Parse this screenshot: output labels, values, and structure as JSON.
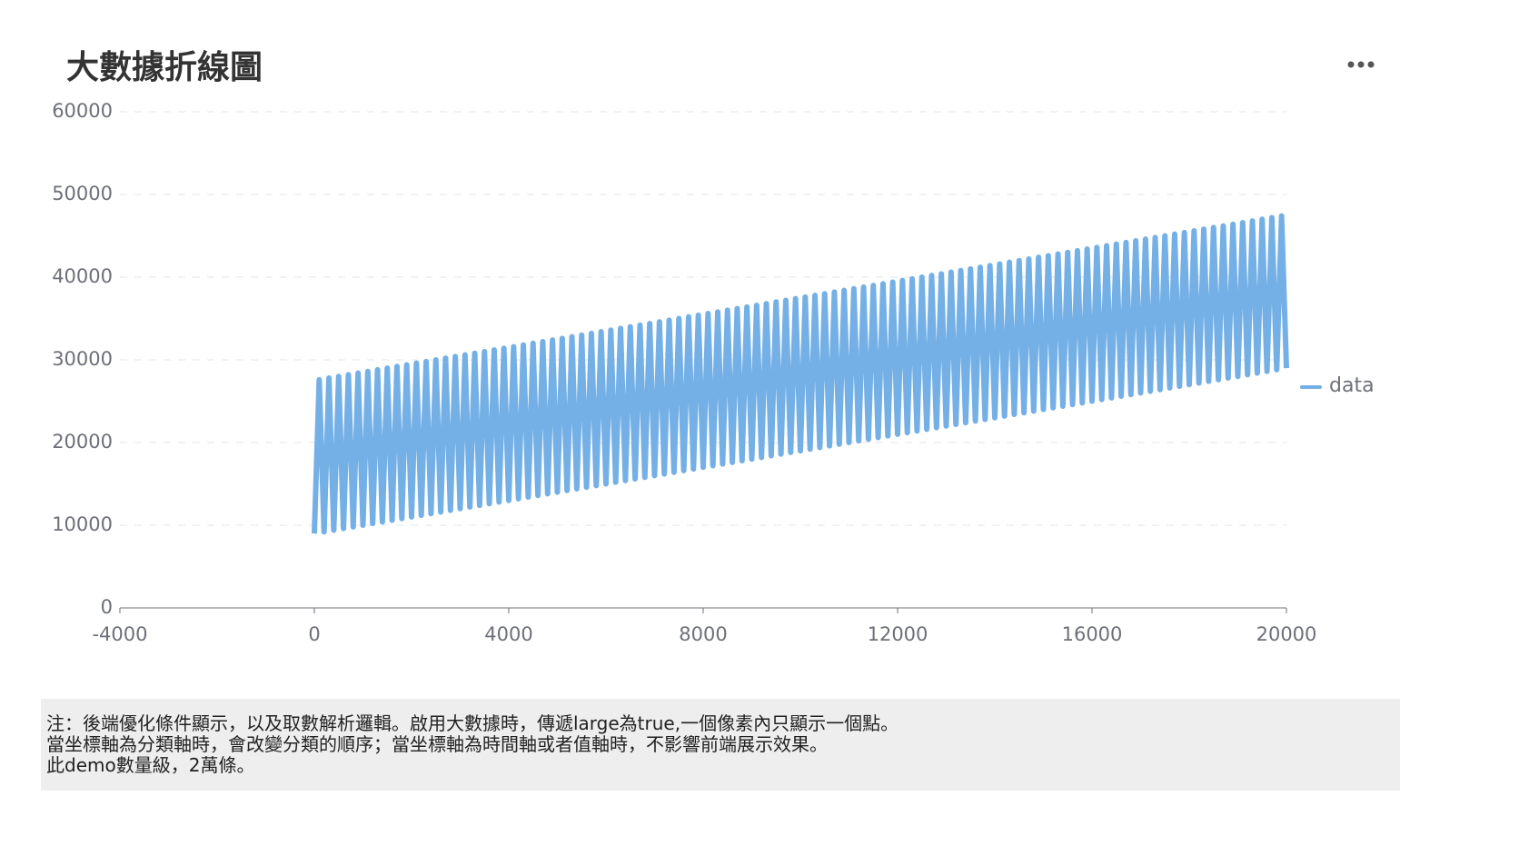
{
  "chart_data": {
    "type": "line",
    "title": "大數據折線圖",
    "xlim": [
      -4000,
      20000
    ],
    "xticks": [
      -4000,
      0,
      4000,
      8000,
      12000,
      16000,
      20000
    ],
    "ylim": [
      0,
      60000
    ],
    "yticks": [
      0,
      10000,
      20000,
      30000,
      40000,
      50000,
      60000
    ],
    "grid": true,
    "legend": "right",
    "x": [
      0,
      100,
      200,
      300,
      400,
      500,
      600,
      700,
      800,
      900,
      1000,
      1100,
      1200,
      1300,
      1400,
      1500,
      1600,
      1700,
      1800,
      1900,
      2000,
      2100,
      2200,
      2300,
      2400,
      2500,
      2600,
      2700,
      2800,
      2900,
      3000,
      3100,
      3200,
      3300,
      3400,
      3500,
      3600,
      3700,
      3800,
      3900,
      4000,
      4100,
      4200,
      4300,
      4400,
      4500,
      4600,
      4700,
      4800,
      4900,
      5000,
      5100,
      5200,
      5300,
      5400,
      5500,
      5600,
      5700,
      5800,
      5900,
      6000,
      6100,
      6200,
      6300,
      6400,
      6500,
      6600,
      6700,
      6800,
      6900,
      7000,
      7100,
      7200,
      7300,
      7400,
      7500,
      7600,
      7700,
      7800,
      7900,
      8000,
      8100,
      8200,
      8300,
      8400,
      8500,
      8600,
      8700,
      8800,
      8900,
      9000,
      9100,
      9200,
      9300,
      9400,
      9500,
      9600,
      9700,
      9800,
      9900,
      10000,
      10100,
      10200,
      10300,
      10400,
      10500,
      10600,
      10700,
      10800,
      10900,
      11000,
      11100,
      11200,
      11300,
      11400,
      11500,
      11600,
      11700,
      11800,
      11900,
      12000,
      12100,
      12200,
      12300,
      12400,
      12500,
      12600,
      12700,
      12800,
      12900,
      13000,
      13100,
      13200,
      13300,
      13400,
      13500,
      13600,
      13700,
      13800,
      13900,
      14000,
      14100,
      14200,
      14300,
      14400,
      14500,
      14600,
      14700,
      14800,
      14900,
      15000,
      15100,
      15200,
      15300,
      15400,
      15500,
      15600,
      15700,
      15800,
      15900,
      16000,
      16100,
      16200,
      16300,
      16400,
      16500,
      16600,
      16700,
      16800,
      16900,
      17000,
      17100,
      17200,
      17300,
      17400,
      17500,
      17600,
      17700,
      17800,
      17900,
      18000,
      18100,
      18200,
      18300,
      18400,
      18500,
      18600,
      18700,
      18800,
      18900,
      19000,
      19100,
      19200,
      19300,
      19400,
      19500,
      19600,
      19700,
      19800,
      19900,
      20000
    ],
    "series": [
      {
        "name": "data",
        "color": "#74b0e6",
        "values": [
          9000,
          27600,
          9200,
          27800,
          9400,
          28000,
          9600,
          28200,
          9800,
          28400,
          10000,
          28600,
          10200,
          28800,
          10400,
          29000,
          10600,
          29200,
          10800,
          29400,
          11000,
          29600,
          11200,
          29800,
          11400,
          30000,
          11600,
          30200,
          11800,
          30400,
          12000,
          30600,
          12200,
          30800,
          12400,
          31000,
          12600,
          31200,
          12800,
          31400,
          13000,
          31600,
          13200,
          31800,
          13400,
          32000,
          13600,
          32200,
          13800,
          32400,
          14000,
          32600,
          14200,
          32800,
          14400,
          33000,
          14600,
          33200,
          14800,
          33400,
          15000,
          33600,
          15200,
          33800,
          15400,
          34000,
          15600,
          34200,
          15800,
          34400,
          16000,
          34600,
          16200,
          34800,
          16400,
          35000,
          16600,
          35200,
          16800,
          35400,
          17000,
          35600,
          17200,
          35800,
          17400,
          36000,
          17600,
          36200,
          17800,
          36400,
          18000,
          36600,
          18200,
          36800,
          18400,
          37000,
          18600,
          37200,
          18800,
          37400,
          19000,
          37600,
          19200,
          37800,
          19400,
          38000,
          19600,
          38200,
          19800,
          38400,
          20000,
          38600,
          20200,
          38800,
          20400,
          39000,
          20600,
          39200,
          20800,
          39400,
          21000,
          39600,
          21200,
          39800,
          21400,
          40000,
          21600,
          40200,
          21800,
          40400,
          22000,
          40600,
          22200,
          40800,
          22400,
          41000,
          22600,
          41200,
          22800,
          41400,
          23000,
          41600,
          23200,
          41800,
          23400,
          42000,
          23600,
          42200,
          23800,
          42400,
          24000,
          42600,
          24200,
          42800,
          24400,
          43000,
          24600,
          43200,
          24800,
          43400,
          25000,
          43600,
          25200,
          43800,
          25400,
          44000,
          25600,
          44200,
          25800,
          44400,
          26000,
          44600,
          26200,
          44800,
          26400,
          45000,
          26600,
          45200,
          26800,
          45400,
          27000,
          45600,
          27200,
          45800,
          27400,
          46000,
          27600,
          46200,
          27800,
          46400,
          28000,
          46600,
          28200,
          46800,
          28400,
          47000,
          28600,
          47200,
          28800,
          47400,
          29000
        ]
      }
    ]
  },
  "note": [
    "注：後端優化條件顯示，以及取數解析邏輯。啟用大數據時，傳遞large為true,一個像素內只顯示一個點。",
    "當坐標軸為分類軸時，會改變分類的順序；當坐標軸為時間軸或者值軸時，不影響前端展示效果。",
    "此demo數量級，2萬條。"
  ]
}
